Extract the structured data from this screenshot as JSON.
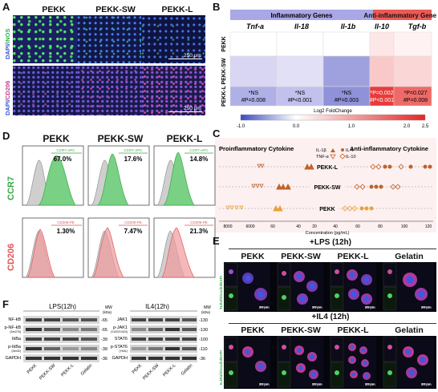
{
  "panel_labels": {
    "a": "A",
    "b": "B",
    "c": "C",
    "d": "D",
    "e": "E",
    "f": "F"
  },
  "panel_a": {
    "columns": [
      "PEKK",
      "PEKK-SW",
      "PEKK-L"
    ],
    "row1_label_a": "DAPI/",
    "row1_label_b": "iNOS",
    "row2_label_a": "DAPI/",
    "row2_label_b": "CD206",
    "scale_text": "250 μm"
  },
  "panel_b": {
    "group_inflammatory": "Inflammatory Genes",
    "group_anti": "Anti-inflammatory Genes",
    "genes": [
      "Tnf-a",
      "Il-18",
      "Il-1b",
      "Il-10",
      "Tgf-b"
    ],
    "rows": [
      "PEKK",
      "PEKK-SW",
      "PEKK-L"
    ],
    "stats": [
      {
        "line1": "*NS",
        "line2": "#P=0.008"
      },
      {
        "line1": "*NS",
        "line2": "#P<0.001"
      },
      {
        "line1": "*NS",
        "line2": "#P=0.003"
      },
      {
        "line1": "*P=0.002",
        "line2": "#P<0.001"
      },
      {
        "line1": "*P=0.027",
        "line2": "#P=0.008"
      }
    ],
    "legend_title": "Log2 FoldChange",
    "legend_ticks": [
      "-1.0",
      "0.0",
      "1.0",
      "2.0",
      "2.5"
    ],
    "colors": {
      "blue": "#4f58c4",
      "red": "#e83b3b"
    }
  },
  "panel_c": {
    "left_title": "Proinflammatory Cytokine",
    "right_title": "Anti-inflammatory Cytokine",
    "legend": [
      "IL-1β",
      "TNF-α",
      "IL-4",
      "IL-10"
    ],
    "rows": [
      "PEKK-L",
      "PEKK-SW",
      "PEKK"
    ],
    "left_ticks": [
      "8000",
      "6000",
      "60",
      "40",
      "20"
    ],
    "right_ticks": [
      "40",
      "60",
      "80",
      "100",
      "120"
    ],
    "axis_label": "Concentration (pg/mL)",
    "colors": {
      "proinflammatory": "#c0622a",
      "anti": "#c0622a",
      "pekk": "#e8a23a"
    }
  },
  "panel_d": {
    "columns": [
      "PEKK",
      "PEKK-SW",
      "PEKK-L"
    ],
    "row1_label": "CCR7",
    "row2_label": "CD206",
    "ccr7_gate": "CCR7-APC",
    "cd206_gate": "CD206-PE",
    "ccr7_values": [
      "67.0%",
      "17.6%",
      "14.8%"
    ],
    "cd206_values": [
      "1.30%",
      "7.47%",
      "21.3%"
    ],
    "colors": {
      "green": "#37a946",
      "red": "#e05558",
      "gray": "#9a9a9a"
    }
  },
  "panel_e": {
    "top_title": "+LPS (12h)",
    "bottom_title": "+IL4 (12h)",
    "columns": [
      "PEKK",
      "PEKK-SW",
      "PEKK-L",
      "Gelatin"
    ],
    "side_top": "TLR4/Vinculin/DAPI",
    "side_bottom": "IL4Ra/Vinculin/DAPI",
    "scale_text": "20 μm"
  },
  "panel_f": {
    "lps_title": "LPS(12h)",
    "il4_title": "IL4(12h)",
    "mw_label": "MW",
    "kda_label": "(kDa)",
    "lps_rows": [
      {
        "name": "NF-kB",
        "sub": "",
        "mw": "-65"
      },
      {
        "name": "p-NF-kB",
        "sub": "(Ser276)",
        "mw": "-65"
      },
      {
        "name": "IkBa",
        "sub": "",
        "mw": "-39"
      },
      {
        "name": "p-IkBa",
        "sub": "(Ser32)",
        "mw": "-39"
      },
      {
        "name": "GAPDH",
        "sub": "",
        "mw": "-36"
      }
    ],
    "il4_rows": [
      {
        "name": "JAK1",
        "sub": "",
        "mw": "-130"
      },
      {
        "name": "p-JAK1",
        "sub": "(Y1022/1023)",
        "mw": "-130"
      },
      {
        "name": "STAT6",
        "sub": "",
        "mw": "-100"
      },
      {
        "name": "p-STAT6",
        "sub": "(Y641)",
        "mw": "-110"
      },
      {
        "name": "GAPDH",
        "sub": "",
        "mw": "-36"
      }
    ],
    "lanes": [
      "PEKK",
      "PEKK-SW",
      "PEKK-L",
      "Gelatin"
    ]
  }
}
